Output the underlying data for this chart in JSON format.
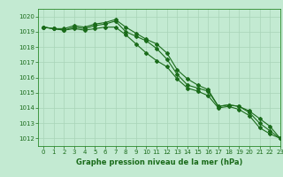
{
  "title": "Graphe pression niveau de la mer (hPa)",
  "background_color": "#c3ead2",
  "grid_color": "#a8d4b8",
  "line_color": "#1a6b1a",
  "spine_color": "#2a8a2a",
  "xlim": [
    -0.5,
    23
  ],
  "ylim": [
    1011.5,
    1020.5
  ],
  "yticks": [
    1012,
    1013,
    1014,
    1015,
    1016,
    1017,
    1018,
    1019,
    1020
  ],
  "xticks": [
    0,
    1,
    2,
    3,
    4,
    5,
    6,
    7,
    8,
    9,
    10,
    11,
    12,
    13,
    14,
    15,
    16,
    17,
    18,
    19,
    20,
    21,
    22,
    23
  ],
  "series1": [
    1019.3,
    1019.2,
    1019.2,
    1019.4,
    1019.3,
    1019.5,
    1019.6,
    1019.8,
    1019.3,
    1018.9,
    1018.5,
    1018.2,
    1017.6,
    1016.5,
    1015.9,
    1015.5,
    1015.2,
    1014.1,
    1014.2,
    1014.1,
    1013.8,
    1013.3,
    1012.8,
    1012.0
  ],
  "series2": [
    1019.3,
    1019.2,
    1019.1,
    1019.3,
    1019.2,
    1019.4,
    1019.5,
    1019.7,
    1019.0,
    1018.7,
    1018.4,
    1017.9,
    1017.2,
    1016.2,
    1015.5,
    1015.3,
    1015.1,
    1014.1,
    1014.2,
    1014.1,
    1013.7,
    1013.0,
    1012.5,
    1012.0
  ],
  "series3": [
    1019.3,
    1019.2,
    1019.1,
    1019.2,
    1019.1,
    1019.2,
    1019.3,
    1019.3,
    1018.8,
    1018.2,
    1017.6,
    1017.1,
    1016.7,
    1015.9,
    1015.3,
    1015.1,
    1014.8,
    1014.0,
    1014.1,
    1013.9,
    1013.5,
    1012.7,
    1012.3,
    1012.0
  ],
  "ylabel_fontsize": 5.5,
  "xlabel_fontsize": 5.5,
  "title_fontsize": 6.0,
  "tick_fontsize": 5.0,
  "linewidth": 0.8,
  "markersize": 2.0
}
